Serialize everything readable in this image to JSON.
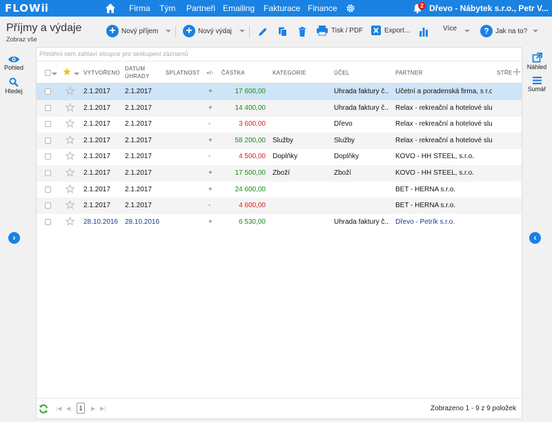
{
  "app": {
    "logo_text": "FLOW",
    "logo_dots": "ii"
  },
  "nav": {
    "items": [
      "Firma",
      "Tým",
      "Partneři",
      "Emailing",
      "Fakturace",
      "Finance"
    ],
    "notification_count": "2",
    "company_label": "Dřevo - Nábytek s.r.o., Petr V..."
  },
  "toolbar": {
    "title": "Příjmy a výdaje",
    "subtitle": "Zobraz vše",
    "new_income": "Nový příjem",
    "new_expense": "Nový výdaj",
    "print_pdf": "Tisk / PDF",
    "export": "Export...",
    "more": "Více",
    "how_to": "Jak na to?"
  },
  "left_sidebar": {
    "view": "Pohled",
    "search": "Hledej"
  },
  "right_sidebar": {
    "preview": "Náhled",
    "summary": "Sumář"
  },
  "table": {
    "group_hint": "Přetáhni sem záhlaví sloupce pro seskupení záznamů",
    "headers": {
      "created": "VYTVOŘENO",
      "paid_date_1": "DATUM",
      "paid_date_2": "ÚHRADY",
      "due": "SPLATNOST",
      "sign": "+/-",
      "amount": "ČÁSTKA",
      "category": "KATEGORIE",
      "purpose": "ÚČEL",
      "partner": "PARTNER",
      "center": "STŘE"
    },
    "rows": [
      {
        "created": "2.1.2017",
        "paid": "2.1.2017",
        "due": "",
        "sign": "+",
        "amount": "17 600,00",
        "category": "",
        "purpose": "Úhrada faktury č....",
        "partner": "Účetní a poradenská firma, s r.o."
      },
      {
        "created": "2.1.2017",
        "paid": "2.1.2017",
        "due": "",
        "sign": "+",
        "amount": "14 400,00",
        "category": "",
        "purpose": "Úhrada faktury č....",
        "partner": "Relax - rekreační a hotelové slu..."
      },
      {
        "created": "2.1.2017",
        "paid": "2.1.2017",
        "due": "",
        "sign": "-",
        "amount": "3 600,00",
        "category": "",
        "purpose": "Dřevo",
        "partner": "Relax - rekreační a hotelové slu..."
      },
      {
        "created": "2.1.2017",
        "paid": "2.1.2017",
        "due": "",
        "sign": "+",
        "amount": "58 200,00",
        "category": "Služby",
        "purpose": "Služby",
        "partner": "Relax - rekreační a hotelové slu..."
      },
      {
        "created": "2.1.2017",
        "paid": "2.1.2017",
        "due": "",
        "sign": "-",
        "amount": "4 500,00",
        "category": "Doplňky",
        "purpose": "Doplňky",
        "partner": "KOVO - HH STEEL, s.r.o."
      },
      {
        "created": "2.1.2017",
        "paid": "2.1.2017",
        "due": "",
        "sign": "+",
        "amount": "17 500,00",
        "category": "Zboží",
        "purpose": "Zboží",
        "partner": "KOVO - HH STEEL, s.r.o."
      },
      {
        "created": "2.1.2017",
        "paid": "2.1.2017",
        "due": "",
        "sign": "+",
        "amount": "24 600,00",
        "category": "",
        "purpose": "",
        "partner": "BET - HERNA s.r.o."
      },
      {
        "created": "2.1.2017",
        "paid": "2.1.2017",
        "due": "",
        "sign": "-",
        "amount": "4 600,00",
        "category": "",
        "purpose": "",
        "partner": "BET - HERNA s.r.o."
      },
      {
        "created": "28.10.2016",
        "paid": "28.10.2016",
        "due": "",
        "sign": "+",
        "amount": "6 530,00",
        "category": "",
        "purpose": "Úhrada faktury č....",
        "partner": "Dřevo - Petrík s.r.o."
      }
    ]
  },
  "footer": {
    "page": "1",
    "info": "Zobrazeno 1 - 9 z 9 položek"
  },
  "colors": {
    "brand": "#1a82e2",
    "positive": "#1a8a1a",
    "negative": "#d42020",
    "selected_row": "#cfe4f7"
  }
}
